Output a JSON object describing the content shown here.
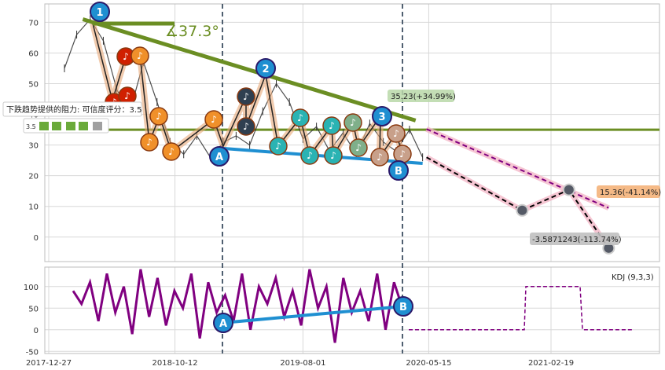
{
  "chart_data": [
    {
      "type": "line",
      "panel": "price",
      "ylim": [
        -8,
        76
      ],
      "y_ticks": [
        0,
        10,
        20,
        30,
        40,
        50,
        60,
        70
      ],
      "grid": true,
      "price_series": {
        "x": [
          "2018-02-01",
          "2018-03-01",
          "2018-04-01",
          "2018-05-01",
          "2018-06-01",
          "2018-07-01",
          "2018-08-01",
          "2018-09-01",
          "2018-10-01",
          "2018-11-01",
          "2018-12-01",
          "2019-01-01",
          "2019-02-01",
          "2019-03-01",
          "2019-04-01",
          "2019-05-01",
          "2019-06-01",
          "2019-07-01",
          "2019-08-01",
          "2019-09-01",
          "2019-10-01",
          "2019-11-01",
          "2019-12-01",
          "2020-01-01",
          "2020-02-01",
          "2020-03-01",
          "2020-04-01",
          "2020-05-01"
        ],
        "y": [
          55,
          66,
          71,
          64,
          48,
          41,
          57,
          44,
          31,
          27,
          33,
          26,
          31,
          33,
          30,
          41,
          50,
          44,
          32,
          36,
          28,
          34,
          27,
          37,
          31,
          28,
          35,
          26
        ]
      },
      "annotations": {
        "angle_label": "∡37.3°",
        "resistance_text": "下跌趋势提供的阻力: 可信度评分：3.5",
        "resistance_score": "3.5",
        "target_up_label": "35.23(+34.99%)",
        "target_mid_label": "15.36(-41.14%)",
        "target_low_label": "-3.5871243(-113.74%)",
        "pivots": [
          "1",
          "2",
          "3",
          "A",
          "B"
        ],
        "horizontal_level": 35,
        "trend_line_start": {
          "x": "2018-03-15",
          "y": 71
        },
        "trend_line_end": {
          "x": "2020-04-15",
          "y": 38
        },
        "support_line_start": {
          "x": "2019-01-20",
          "y": 29
        },
        "support_line_end": {
          "x": "2020-05-01",
          "y": 24
        },
        "forecast_up": [
          {
            "x": "2020-05-10",
            "y": 35.2
          },
          {
            "x": "2021-07-01",
            "y": 9.5
          }
        ],
        "forecast_mid": [
          {
            "x": "2020-05-10",
            "y": 26
          },
          {
            "x": "2020-12-15",
            "y": 8.7
          },
          {
            "x": "2021-04-01",
            "y": 15.4
          },
          {
            "x": "2021-07-01",
            "y": -3.6
          }
        ]
      },
      "x_ticks": [
        "2017-12-27",
        "2018-10-12",
        "2019-08-01",
        "2020-05-15",
        "2021-02-19"
      ]
    },
    {
      "type": "line",
      "panel": "indicator",
      "title": "KDJ (9,3,3)",
      "ylim": [
        -55,
        145
      ],
      "y_ticks": [
        -50,
        0,
        50,
        100
      ],
      "series": [
        {
          "values": [
            90,
            60,
            110,
            20,
            130,
            40,
            100,
            -10,
            140,
            30,
            120,
            10,
            90,
            50,
            130,
            -20,
            110,
            40,
            80,
            20,
            130,
            0,
            100,
            60,
            120,
            30,
            90,
            10,
            140,
            50,
            100,
            -30,
            120,
            40,
            90,
            20,
            130,
            0,
            110,
            50
          ]
        }
      ],
      "pivots": [
        "A",
        "B"
      ],
      "x_ticks": [
        "2017-12-27",
        "2018-10-12",
        "2019-08-01",
        "2020-05-15",
        "2021-02-19"
      ]
    }
  ],
  "colors": {
    "trend": "#6b8e23",
    "support": "#1f8fd1",
    "forecast_up": "#800080",
    "forecast_down": "#000000",
    "kdj": "#800080",
    "pivot_fill": "#1f8fd1",
    "note_orange": "#f0902a",
    "note_red": "#d02000",
    "note_teal": "#2ab3b3",
    "note_dark": "#2f3f50",
    "note_sage": "#7faf8a",
    "note_tan": "#c8a08a"
  }
}
